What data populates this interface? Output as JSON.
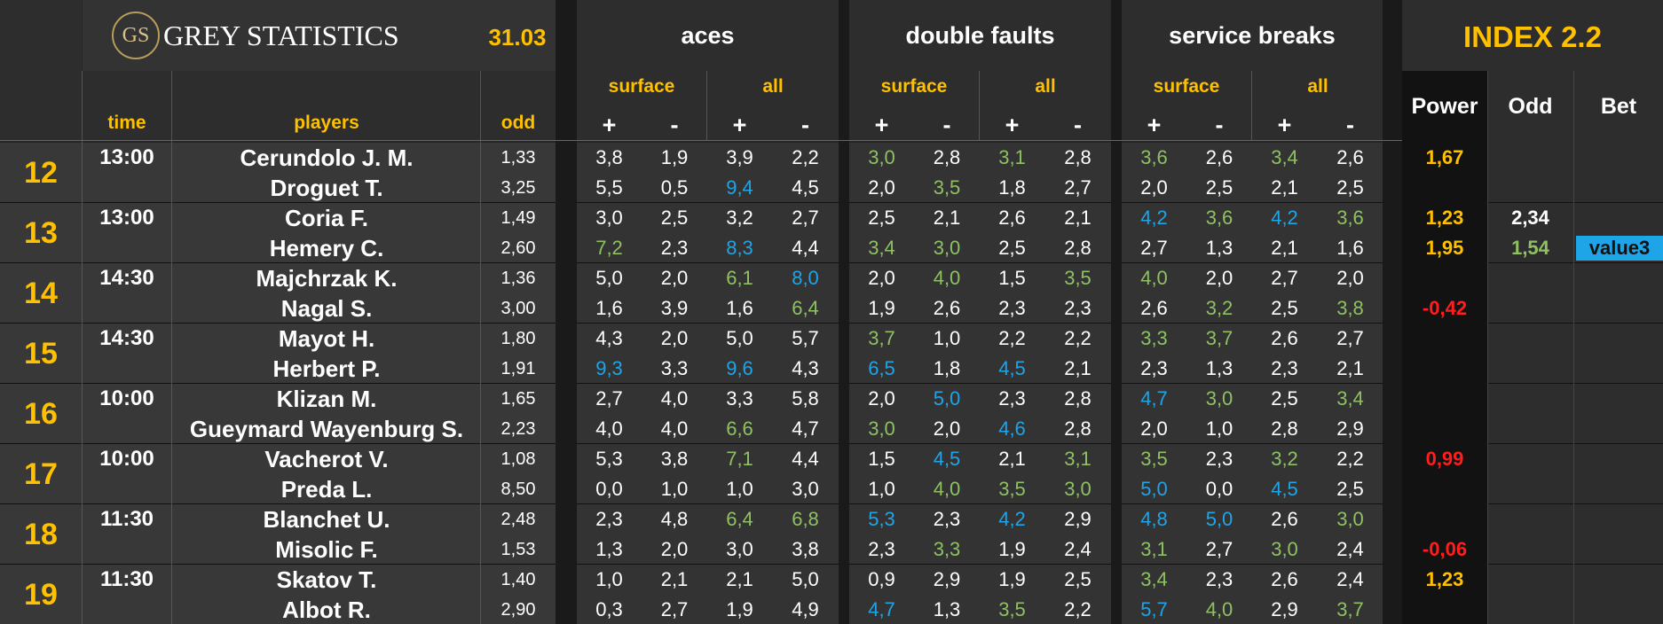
{
  "header": {
    "logo_initials": "GS",
    "brand": "GREY STATISTICS",
    "date": "31.03",
    "groups": [
      "aces",
      "double faults",
      "service breaks"
    ],
    "index_title": "INDEX 2.2",
    "sub_surface": "surface",
    "sub_all": "all",
    "plus": "+",
    "minus": "-",
    "col_time": "time",
    "col_players": "players",
    "col_odd": "odd",
    "col_power": "Power",
    "col_odd2": "Odd",
    "col_bet": "Bet"
  },
  "colors": {
    "background": "#262626",
    "panel": "#1b1b1b",
    "yellow": "#ffc000",
    "green": "#8fc164",
    "blue": "#1ea5e8",
    "red": "#ff1d1d",
    "value_badge": "#1ea5e8"
  },
  "matches": [
    {
      "num": "12",
      "time": "13:00",
      "power": [
        "1,67",
        ""
      ],
      "power_color": [
        "yellow",
        ""
      ],
      "odd2": [
        "",
        ""
      ],
      "bet": [
        "",
        ""
      ],
      "players": [
        {
          "name": "Cerundolo J. M.",
          "odd": "1,33",
          "vals": [
            "3,8",
            "1,9",
            "3,9",
            "2,2",
            "3,0",
            "2,8",
            "3,1",
            "2,8",
            "3,6",
            "2,6",
            "3,4",
            "2,6"
          ],
          "colors": [
            "w",
            "w",
            "w",
            "w",
            "g",
            "w",
            "g",
            "w",
            "g",
            "w",
            "g",
            "w"
          ]
        },
        {
          "name": "Droguet T.",
          "odd": "3,25",
          "vals": [
            "5,5",
            "0,5",
            "9,4",
            "4,5",
            "2,0",
            "3,5",
            "1,8",
            "2,7",
            "2,0",
            "2,5",
            "2,1",
            "2,5"
          ],
          "colors": [
            "w",
            "w",
            "b",
            "w",
            "w",
            "g",
            "w",
            "w",
            "w",
            "w",
            "w",
            "w"
          ]
        }
      ]
    },
    {
      "num": "13",
      "time": "13:00",
      "power": [
        "1,23",
        "1,95"
      ],
      "power_color": [
        "yellow",
        "yellow"
      ],
      "odd2": [
        "2,34",
        "1,54"
      ],
      "bet": [
        "",
        "value3"
      ],
      "players": [
        {
          "name": "Coria F.",
          "odd": "1,49",
          "vals": [
            "3,0",
            "2,5",
            "3,2",
            "2,7",
            "2,5",
            "2,1",
            "2,6",
            "2,1",
            "4,2",
            "3,6",
            "4,2",
            "3,6"
          ],
          "colors": [
            "w",
            "w",
            "w",
            "w",
            "w",
            "w",
            "w",
            "w",
            "b",
            "g",
            "b",
            "g"
          ]
        },
        {
          "name": "Hemery C.",
          "odd": "2,60",
          "vals": [
            "7,2",
            "2,3",
            "8,3",
            "4,4",
            "3,4",
            "3,0",
            "2,5",
            "2,8",
            "2,7",
            "1,3",
            "2,1",
            "1,6"
          ],
          "colors": [
            "g",
            "w",
            "b",
            "w",
            "g",
            "g",
            "w",
            "w",
            "w",
            "w",
            "w",
            "w"
          ]
        }
      ]
    },
    {
      "num": "14",
      "time": "14:30",
      "power": [
        "",
        "-0,42"
      ],
      "power_color": [
        "",
        "red"
      ],
      "odd2": [
        "",
        ""
      ],
      "bet": [
        "",
        ""
      ],
      "players": [
        {
          "name": "Majchrzak K.",
          "odd": "1,36",
          "vals": [
            "5,0",
            "2,0",
            "6,1",
            "8,0",
            "2,0",
            "4,0",
            "1,5",
            "3,5",
            "4,0",
            "2,0",
            "2,7",
            "2,0"
          ],
          "colors": [
            "w",
            "w",
            "g",
            "b",
            "w",
            "g",
            "w",
            "g",
            "g",
            "w",
            "w",
            "w"
          ]
        },
        {
          "name": "Nagal S.",
          "odd": "3,00",
          "vals": [
            "1,6",
            "3,9",
            "1,6",
            "6,4",
            "1,9",
            "2,6",
            "2,3",
            "2,3",
            "2,6",
            "3,2",
            "2,5",
            "3,8"
          ],
          "colors": [
            "w",
            "w",
            "w",
            "g",
            "w",
            "w",
            "w",
            "w",
            "w",
            "g",
            "w",
            "g"
          ]
        }
      ]
    },
    {
      "num": "15",
      "time": "14:30",
      "power": [
        "",
        ""
      ],
      "power_color": [
        "",
        ""
      ],
      "odd2": [
        "",
        ""
      ],
      "bet": [
        "",
        ""
      ],
      "players": [
        {
          "name": "Mayot H.",
          "odd": "1,80",
          "vals": [
            "4,3",
            "2,0",
            "5,0",
            "5,7",
            "3,7",
            "1,0",
            "2,2",
            "2,2",
            "3,3",
            "3,7",
            "2,6",
            "2,7"
          ],
          "colors": [
            "w",
            "w",
            "w",
            "w",
            "g",
            "w",
            "w",
            "w",
            "g",
            "g",
            "w",
            "w"
          ]
        },
        {
          "name": "Herbert P.",
          "odd": "1,91",
          "vals": [
            "9,3",
            "3,3",
            "9,6",
            "4,3",
            "6,5",
            "1,8",
            "4,5",
            "2,1",
            "2,3",
            "1,3",
            "2,3",
            "2,1"
          ],
          "colors": [
            "b",
            "w",
            "b",
            "w",
            "b",
            "w",
            "b",
            "w",
            "w",
            "w",
            "w",
            "w"
          ]
        }
      ]
    },
    {
      "num": "16",
      "time": "10:00",
      "power": [
        "",
        ""
      ],
      "power_color": [
        "",
        ""
      ],
      "odd2": [
        "",
        ""
      ],
      "bet": [
        "",
        ""
      ],
      "players": [
        {
          "name": "Klizan M.",
          "odd": "1,65",
          "vals": [
            "2,7",
            "4,0",
            "3,3",
            "5,8",
            "2,0",
            "5,0",
            "2,3",
            "2,8",
            "4,7",
            "3,0",
            "2,5",
            "3,4"
          ],
          "colors": [
            "w",
            "w",
            "w",
            "w",
            "w",
            "b",
            "w",
            "w",
            "b",
            "g",
            "w",
            "g"
          ]
        },
        {
          "name": "Gueymard Wayenburg S.",
          "odd": "2,23",
          "vals": [
            "4,0",
            "4,0",
            "6,6",
            "4,7",
            "3,0",
            "2,0",
            "4,6",
            "2,8",
            "2,0",
            "1,0",
            "2,8",
            "2,9"
          ],
          "colors": [
            "w",
            "w",
            "g",
            "w",
            "g",
            "w",
            "b",
            "w",
            "w",
            "w",
            "w",
            "w"
          ]
        }
      ]
    },
    {
      "num": "17",
      "time": "10:00",
      "power": [
        "0,99",
        ""
      ],
      "power_color": [
        "red",
        ""
      ],
      "odd2": [
        "",
        ""
      ],
      "bet": [
        "",
        ""
      ],
      "players": [
        {
          "name": "Vacherot V.",
          "odd": "1,08",
          "vals": [
            "5,3",
            "3,8",
            "7,1",
            "4,4",
            "1,5",
            "4,5",
            "2,1",
            "3,1",
            "3,5",
            "2,3",
            "3,2",
            "2,2"
          ],
          "colors": [
            "w",
            "w",
            "g",
            "w",
            "w",
            "b",
            "w",
            "g",
            "g",
            "w",
            "g",
            "w"
          ]
        },
        {
          "name": "Preda L.",
          "odd": "8,50",
          "vals": [
            "0,0",
            "1,0",
            "1,0",
            "3,0",
            "1,0",
            "4,0",
            "3,5",
            "3,0",
            "5,0",
            "0,0",
            "4,5",
            "2,5"
          ],
          "colors": [
            "w",
            "w",
            "w",
            "w",
            "w",
            "g",
            "g",
            "g",
            "b",
            "w",
            "b",
            "w"
          ]
        }
      ]
    },
    {
      "num": "18",
      "time": "11:30",
      "power": [
        "",
        "-0,06"
      ],
      "power_color": [
        "",
        "red"
      ],
      "odd2": [
        "",
        ""
      ],
      "bet": [
        "",
        ""
      ],
      "players": [
        {
          "name": "Blanchet U.",
          "odd": "2,48",
          "vals": [
            "2,3",
            "4,8",
            "6,4",
            "6,8",
            "5,3",
            "2,3",
            "4,2",
            "2,9",
            "4,8",
            "5,0",
            "2,6",
            "3,0"
          ],
          "colors": [
            "w",
            "w",
            "g",
            "g",
            "b",
            "w",
            "b",
            "w",
            "b",
            "b",
            "w",
            "g"
          ]
        },
        {
          "name": "Misolic F.",
          "odd": "1,53",
          "vals": [
            "1,3",
            "2,0",
            "3,0",
            "3,8",
            "2,3",
            "3,3",
            "1,9",
            "2,4",
            "3,1",
            "2,7",
            "3,0",
            "2,4"
          ],
          "colors": [
            "w",
            "w",
            "w",
            "w",
            "w",
            "g",
            "w",
            "w",
            "g",
            "w",
            "g",
            "w"
          ]
        }
      ]
    },
    {
      "num": "19",
      "time": "11:30",
      "power": [
        "1,23",
        ""
      ],
      "power_color": [
        "yellow",
        ""
      ],
      "odd2": [
        "",
        ""
      ],
      "bet": [
        "",
        ""
      ],
      "players": [
        {
          "name": "Skatov T.",
          "odd": "1,40",
          "vals": [
            "1,0",
            "2,1",
            "2,1",
            "5,0",
            "0,9",
            "2,9",
            "1,9",
            "2,5",
            "3,4",
            "2,3",
            "2,6",
            "2,4"
          ],
          "colors": [
            "w",
            "w",
            "w",
            "w",
            "w",
            "w",
            "w",
            "w",
            "g",
            "w",
            "w",
            "w"
          ]
        },
        {
          "name": "Albot R.",
          "odd": "2,90",
          "vals": [
            "0,3",
            "2,7",
            "1,9",
            "4,9",
            "4,7",
            "1,3",
            "3,5",
            "2,2",
            "5,7",
            "4,0",
            "2,9",
            "3,7"
          ],
          "colors": [
            "w",
            "w",
            "w",
            "w",
            "b",
            "w",
            "g",
            "w",
            "b",
            "g",
            "w",
            "g"
          ]
        }
      ]
    }
  ]
}
